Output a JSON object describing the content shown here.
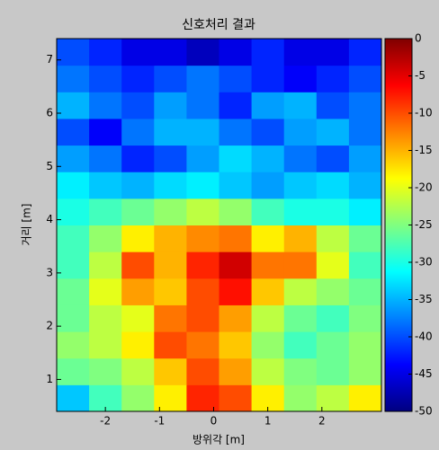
{
  "chart_data": {
    "type": "heatmap",
    "title": "신호처리 결과",
    "x_label": "방위각 [m]",
    "y_label": "거리 [m]",
    "x": [
      -2.6,
      -2.0,
      -1.4,
      -0.8,
      -0.2,
      0.4,
      1.0,
      1.6,
      2.2,
      2.8
    ],
    "y": [
      0.65,
      1.15,
      1.65,
      2.15,
      2.65,
      3.15,
      3.65,
      4.15,
      4.65,
      5.15,
      5.65,
      6.15,
      6.65,
      7.15
    ],
    "z": [
      [
        -34,
        -28,
        -24,
        -18,
        -8,
        -10,
        -18,
        -24,
        -22,
        -18
      ],
      [
        -26,
        -25,
        -22,
        -16,
        -10,
        -14,
        -22,
        -25,
        -26,
        -24
      ],
      [
        -24,
        -22,
        -18,
        -10,
        -12,
        -16,
        -24,
        -28,
        -26,
        -24
      ],
      [
        -26,
        -22,
        -20,
        -12,
        -10,
        -14,
        -22,
        -26,
        -28,
        -25
      ],
      [
        -26,
        -20,
        -14,
        -16,
        -10,
        -7,
        -16,
        -22,
        -24,
        -26
      ],
      [
        -28,
        -22,
        -10,
        -15,
        -8,
        -4,
        -12,
        -12,
        -20,
        -28
      ],
      [
        -28,
        -24,
        -18,
        -15,
        -13,
        -12,
        -18,
        -15,
        -22,
        -26
      ],
      [
        -30,
        -28,
        -26,
        -24,
        -22,
        -24,
        -28,
        -30,
        -30,
        -32
      ],
      [
        -32,
        -34,
        -35,
        -33,
        -32,
        -34,
        -36,
        -34,
        -33,
        -35
      ],
      [
        -36,
        -38,
        -42,
        -40,
        -36,
        -33,
        -35,
        -38,
        -40,
        -36
      ],
      [
        -40,
        -44,
        -38,
        -35,
        -35,
        -38,
        -40,
        -36,
        -35,
        -38
      ],
      [
        -35,
        -38,
        -40,
        -36,
        -38,
        -42,
        -36,
        -35,
        -40,
        -38
      ],
      [
        -38,
        -40,
        -42,
        -40,
        -38,
        -40,
        -42,
        -44,
        -42,
        -40
      ],
      [
        -40,
        -42,
        -45,
        -45,
        -47,
        -45,
        -42,
        -45,
        -45,
        -42
      ]
    ],
    "xlim": [
      -2.9,
      3.1
    ],
    "ylim": [
      0.4,
      7.4
    ],
    "xticks": [
      -2,
      -1,
      0,
      1,
      2
    ],
    "yticks": [
      1,
      2,
      3,
      4,
      5,
      6,
      7
    ],
    "clim": [
      -50,
      0
    ],
    "cticks": [
      0,
      -5,
      -10,
      -15,
      -20,
      -25,
      -30,
      -35,
      -40,
      -45,
      -50
    ],
    "colormap": "jet"
  }
}
